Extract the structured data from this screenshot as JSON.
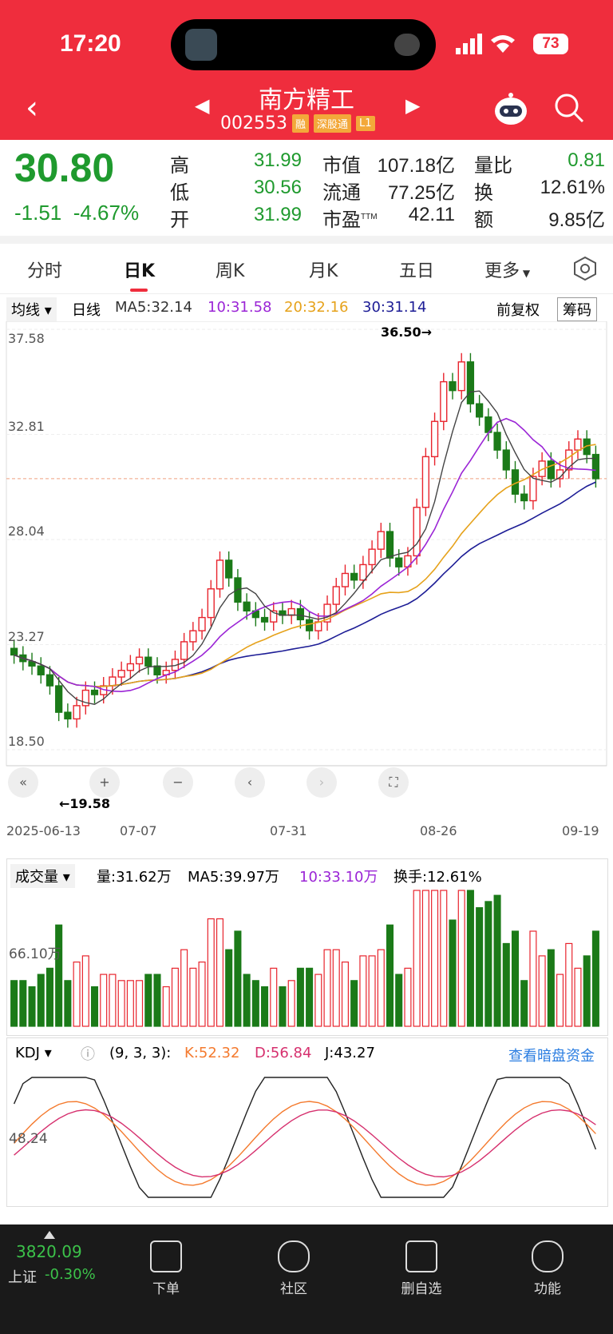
{
  "status": {
    "time": "17:20",
    "battery": "73"
  },
  "header": {
    "title": "南方精工",
    "code": "002553",
    "tags": [
      "融",
      "深股通",
      "L1"
    ]
  },
  "quote": {
    "price": "30.80",
    "change": "-1.51",
    "change_pct": "-4.67%",
    "high_label": "高",
    "high": "31.99",
    "low_label": "低",
    "low": "30.56",
    "open_label": "开",
    "open": "31.99",
    "mktcap_label": "市值",
    "mktcap": "107.18亿",
    "float_label": "流通",
    "float": "77.25亿",
    "pe_label": "市盈",
    "pe_sup": "TTM",
    "pe": "42.11",
    "volratio_label": "量比",
    "volratio": "0.81",
    "turnover_label": "换",
    "turnover": "12.61%",
    "amount_label": "额",
    "amount": "9.85亿"
  },
  "tabs": [
    "分时",
    "日K",
    "周K",
    "月K",
    "五日",
    "更多"
  ],
  "active_tab": "日K",
  "ma_row": {
    "selector": "均线",
    "type": "日线",
    "ma5": "MA5:32.14",
    "ma10": "10:31.58",
    "ma20": "20:32.16",
    "ma30": "30:31.14",
    "adj": "前复权",
    "chip": "筹码"
  },
  "kline": {
    "y_ticks": [
      "37.58",
      "32.81",
      "28.04",
      "23.27",
      "18.50"
    ],
    "x_ticks": [
      "2025-06-13",
      "07-07",
      "07-31",
      "08-26",
      "09-19"
    ],
    "high_mark": "36.50→",
    "low_mark": "←19.58"
  },
  "volume": {
    "selector": "成交量",
    "vol": "量:31.62万",
    "ma5": "MA5:39.97万",
    "ma10": "10:33.10万",
    "turnover": "换手:12.61%",
    "y_tick": "66.10万"
  },
  "kdj": {
    "selector": "KDJ",
    "params": "(9, 3, 3):",
    "k": "K:52.32",
    "d": "D:56.84",
    "j": "J:43.27",
    "link": "查看暗盘资金",
    "y_tick": "48.24"
  },
  "index": {
    "value": "3820.09",
    "name": "上证",
    "pct": "-0.30%"
  },
  "nav": [
    "下单",
    "社区",
    "删自选",
    "功能"
  ],
  "colors": {
    "up": "#e8242d",
    "down": "#1b7a18",
    "brand": "#ef2d3d"
  },
  "chart_data": {
    "type": "candlestick",
    "x_range": [
      "2025-06-13",
      "09-19"
    ],
    "ylim": [
      18.5,
      37.58
    ],
    "close_series": [
      22.8,
      22.5,
      22.3,
      21.9,
      21.4,
      20.2,
      19.9,
      20.5,
      21.2,
      21.0,
      21.4,
      21.8,
      22.1,
      22.4,
      22.7,
      22.3,
      21.9,
      22.1,
      22.6,
      23.4,
      23.9,
      24.5,
      25.8,
      27.1,
      26.3,
      25.2,
      24.8,
      24.5,
      24.3,
      24.8,
      24.6,
      24.9,
      24.4,
      23.9,
      24.3,
      25.1,
      25.9,
      26.5,
      26.2,
      26.9,
      27.6,
      28.4,
      27.2,
      26.8,
      27.3,
      29.5,
      31.8,
      33.4,
      35.2,
      34.8,
      36.1,
      34.2,
      33.6,
      32.9,
      32.1,
      31.2,
      30.1,
      29.8,
      30.9,
      31.6,
      30.8,
      31.2,
      32.1,
      32.6,
      31.9,
      30.8
    ],
    "volume_ylabel": "66.10万",
    "kdj_ylabel": "48.24"
  }
}
